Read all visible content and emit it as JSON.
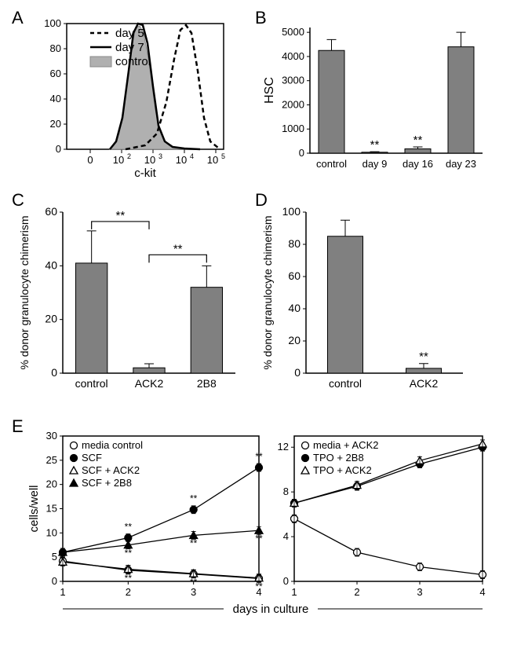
{
  "panelA": {
    "type": "histogram",
    "x_axis_label": "c-kit",
    "x_ticks": [
      "0",
      "10",
      "10",
      "10",
      "10"
    ],
    "x_superscripts": [
      "",
      "2",
      "3",
      "4",
      "5"
    ],
    "y_ticks": [
      0,
      20,
      40,
      60,
      80,
      100
    ],
    "legend": [
      {
        "label": "day 5",
        "style": "dashed",
        "color": "#000000"
      },
      {
        "label": "day 7",
        "style": "solid",
        "color": "#000000"
      },
      {
        "label": "control",
        "style": "filled",
        "color": "#a0a0a0"
      }
    ],
    "curves": {
      "control_fill": "#b0b0b0",
      "day5_peak_x": 0.72,
      "day7_peak_x": 0.42,
      "control_peak_x": 0.4
    }
  },
  "panelB": {
    "type": "bar",
    "y_label": "HSC",
    "y_ticks": [
      0,
      1000,
      2000,
      3000,
      4000,
      5000
    ],
    "ylim": [
      0,
      5200
    ],
    "categories": [
      "control",
      "day 9",
      "day 16",
      "day 23"
    ],
    "values": [
      4250,
      40,
      180,
      4400
    ],
    "errors": [
      450,
      20,
      80,
      600
    ],
    "sig": [
      "",
      "**",
      "**",
      ""
    ],
    "bar_color": "#808080",
    "axis_fontsize": 14,
    "label_fontsize": 16
  },
  "panelC": {
    "type": "bar",
    "y_label": "% donor granulocyte chimerism",
    "y_ticks": [
      0,
      20,
      40,
      60
    ],
    "ylim": [
      0,
      60
    ],
    "categories": [
      "control",
      "ACK2",
      "2B8"
    ],
    "values": [
      41,
      2,
      32
    ],
    "errors": [
      12,
      1.5,
      8
    ],
    "sig_pairs": [
      {
        "from": 0,
        "to": 1,
        "label": "**"
      },
      {
        "from": 1,
        "to": 2,
        "label": "**"
      }
    ],
    "bar_color": "#808080"
  },
  "panelD": {
    "type": "bar",
    "y_label": "% donor granulocyte chimerism",
    "y_ticks": [
      0,
      20,
      40,
      60,
      80,
      100
    ],
    "ylim": [
      0,
      100
    ],
    "categories": [
      "control",
      "ACK2"
    ],
    "values": [
      85,
      3
    ],
    "errors": [
      10,
      3
    ],
    "sig": [
      "",
      "**"
    ],
    "bar_color": "#808080"
  },
  "panelE": {
    "type": "line",
    "x_label": "days in culture",
    "y_label": "cells/well",
    "left": {
      "x_ticks": [
        1,
        2,
        3,
        4
      ],
      "y_ticks": [
        0,
        5,
        10,
        15,
        20,
        25,
        30
      ],
      "ylim": [
        0,
        30
      ],
      "series": [
        {
          "name": "media control",
          "marker": "open-circle",
          "values": [
            4.2,
            2.3,
            1.5,
            0.6
          ],
          "sig": [
            "",
            "**",
            "**",
            "**"
          ]
        },
        {
          "name": "SCF",
          "marker": "filled-circle",
          "values": [
            6.0,
            9.0,
            14.8,
            23.5
          ],
          "sig": [
            "",
            "**",
            "**",
            "**"
          ]
        },
        {
          "name": "SCF + ACK2",
          "marker": "open-triangle",
          "values": [
            4.0,
            2.5,
            1.6,
            0.7
          ],
          "sig": [
            "",
            "",
            "",
            ""
          ]
        },
        {
          "name": "SCF + 2B8",
          "marker": "filled-triangle",
          "values": [
            6.0,
            7.5,
            9.5,
            10.5
          ],
          "sig": [
            "",
            "**",
            "**",
            "**"
          ]
        }
      ]
    },
    "right": {
      "x_ticks": [
        1,
        2,
        3,
        4
      ],
      "y_ticks": [
        0,
        4,
        8,
        12
      ],
      "ylim": [
        0,
        13
      ],
      "series": [
        {
          "name": "media + ACK2",
          "marker": "open-circle",
          "values": [
            5.6,
            2.6,
            1.3,
            0.6
          ]
        },
        {
          "name": "TPO + 2B8",
          "marker": "filled-circle",
          "values": [
            7.0,
            8.5,
            10.5,
            12.0
          ]
        },
        {
          "name": "TPO + ACK2",
          "marker": "open-triangle",
          "values": [
            7.0,
            8.6,
            10.8,
            12.3
          ]
        }
      ]
    }
  },
  "labels": {
    "A": "A",
    "B": "B",
    "C": "C",
    "D": "D",
    "E": "E"
  }
}
